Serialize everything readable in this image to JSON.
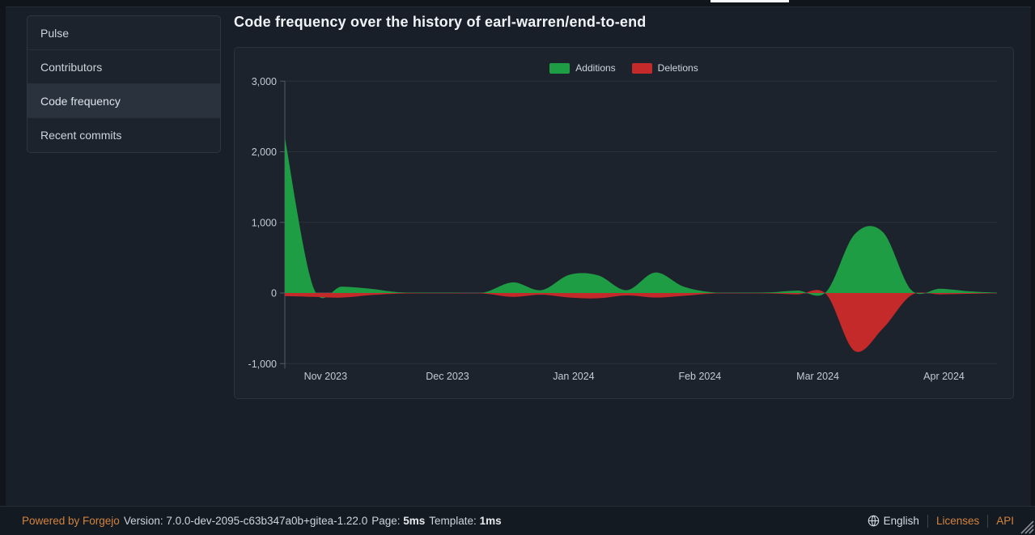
{
  "sidebar": {
    "items": [
      {
        "label": "Pulse",
        "selected": false
      },
      {
        "label": "Contributors",
        "selected": false
      },
      {
        "label": "Code frequency",
        "selected": true
      },
      {
        "label": "Recent commits",
        "selected": false
      }
    ]
  },
  "main": {
    "title": "Code frequency over the history of earl-warren/end-to-end"
  },
  "chart_data": {
    "type": "area",
    "title": "Code frequency",
    "legend_position": "top-center",
    "grid": true,
    "ylim": [
      -1000,
      3000
    ],
    "legend": [
      {
        "name": "Additions",
        "color": "#1f9d44"
      },
      {
        "name": "Deletions",
        "color": "#c42a2a"
      }
    ],
    "y_ticks": [
      {
        "label": "3,000",
        "value": 3000
      },
      {
        "label": "2,000",
        "value": 2000
      },
      {
        "label": "1,000",
        "value": 1000
      },
      {
        "label": "0",
        "value": 0
      },
      {
        "label": "-1,000",
        "value": -1000
      }
    ],
    "x_ticks": [
      {
        "label": "Nov 2023",
        "week_pos": 1.43
      },
      {
        "label": "Dec 2023",
        "week_pos": 5.71
      },
      {
        "label": "Jan 2024",
        "week_pos": 10.14
      },
      {
        "label": "Feb 2024",
        "week_pos": 14.57
      },
      {
        "label": "Mar 2024",
        "week_pos": 18.71
      },
      {
        "label": "Apr 2024",
        "week_pos": 23.14
      }
    ],
    "x_weeks": [
      "Oct 22, 2023",
      "Oct 29, 2023",
      "Nov 5, 2023",
      "Nov 12, 2023",
      "Nov 19, 2023",
      "Nov 26, 2023",
      "Dec 3, 2023",
      "Dec 10, 2023",
      "Dec 17, 2023",
      "Dec 24, 2023",
      "Dec 31, 2023",
      "Jan 7, 2024",
      "Jan 14, 2024",
      "Jan 21, 2024",
      "Jan 28, 2024",
      "Feb 4, 2024",
      "Feb 11, 2024",
      "Feb 18, 2024",
      "Feb 25, 2024",
      "Mar 3, 2024",
      "Mar 10, 2024",
      "Mar 17, 2024",
      "Mar 24, 2024",
      "Mar 31, 2024",
      "Apr 7, 2024",
      "Apr 14, 2024"
    ],
    "series": [
      {
        "name": "Additions",
        "color": "#1f9d44",
        "values": [
          2200,
          80,
          90,
          60,
          10,
          5,
          5,
          8,
          150,
          40,
          260,
          250,
          40,
          290,
          90,
          10,
          5,
          8,
          35,
          15,
          830,
          860,
          40,
          60,
          25,
          5
        ]
      },
      {
        "name": "Deletions",
        "color": "#c42a2a",
        "values": [
          -45,
          -55,
          -65,
          -30,
          -8,
          -5,
          -5,
          -8,
          -55,
          -25,
          -65,
          -75,
          -35,
          -65,
          -40,
          -8,
          -4,
          -6,
          -20,
          -15,
          -820,
          -500,
          -30,
          -20,
          -12,
          -3
        ]
      }
    ]
  },
  "footer": {
    "powered_by": "Powered by Forgejo",
    "version_label": "Version:",
    "version_value": "7.0.0-dev-2095-c63b347a0b+gitea-1.22.0",
    "page_label": "Page:",
    "page_value": "5ms",
    "template_label": "Template:",
    "template_value": "1ms",
    "language": "English",
    "licenses_label": "Licenses",
    "api_label": "API"
  },
  "colors": {
    "additions": "#1f9d44",
    "deletions": "#c42a2a",
    "link_orange": "#d2833c",
    "grid_line": "#29313b",
    "axis_line": "#525b66",
    "tick_text": "#c3cad2"
  }
}
